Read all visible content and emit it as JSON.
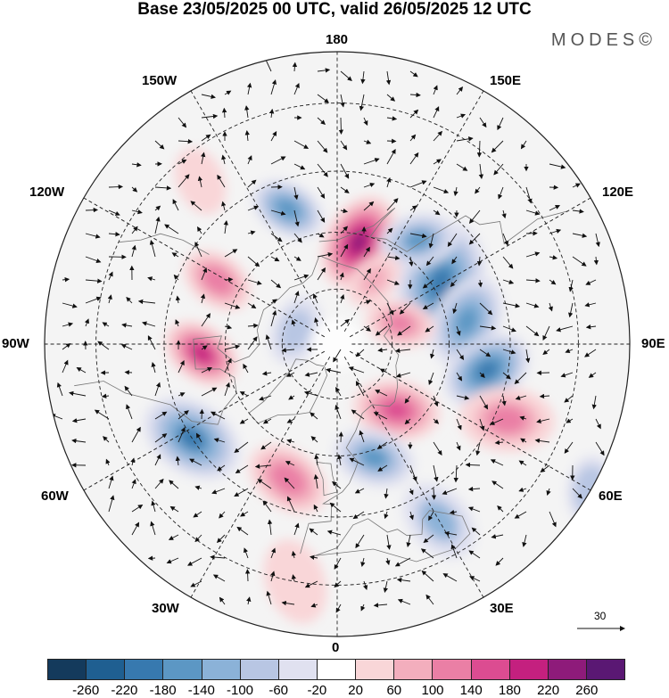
{
  "title": "Base 23/05/2025 00 UTC, valid 26/05/2025 12 UTC",
  "logo": "MODES©",
  "longitude_labels": {
    "top": "180",
    "bottom": "0",
    "left": "90W",
    "right": "90E",
    "l150w": "150W",
    "l150e": "150E",
    "l120w": "120W",
    "l120e": "120E",
    "l60w": "60W",
    "l60e": "60E",
    "l30w": "30W",
    "l30e": "30E"
  },
  "wind_reference": {
    "value": "30"
  },
  "colorbar": {
    "ticks": [
      "-260",
      "-220",
      "-180",
      "-140",
      "-100",
      "-60",
      "-20",
      "20",
      "60",
      "100",
      "140",
      "180",
      "220",
      "260"
    ],
    "colors": [
      "#143a5c",
      "#1f5f91",
      "#3779af",
      "#5c97c4",
      "#8bb2d8",
      "#b8c6e3",
      "#e0e1f0",
      "#ffffff",
      "#f9d6d8",
      "#f3aebd",
      "#ea7fa5",
      "#dc4c91",
      "#c4207f",
      "#8e1b7a",
      "#5a1873"
    ]
  },
  "anomalies": [
    {
      "lon": 168,
      "lat": 62,
      "v": 230,
      "r": 48
    },
    {
      "lon": 120,
      "lat": 58,
      "v": -190,
      "r": 62
    },
    {
      "lon": 100,
      "lat": 55,
      "v": -160,
      "r": 48
    },
    {
      "lon": 142,
      "lat": 55,
      "v": -140,
      "r": 40
    },
    {
      "lon": 80,
      "lat": 50,
      "v": -200,
      "r": 46
    },
    {
      "lon": 108,
      "lat": 72,
      "v": 120,
      "r": 36
    },
    {
      "lon": 66,
      "lat": 42,
      "v": 110,
      "r": 50
    },
    {
      "lon": 42,
      "lat": 66,
      "v": 160,
      "r": 44
    },
    {
      "lon": 18,
      "lat": 58,
      "v": -140,
      "r": 42
    },
    {
      "lon": 30,
      "lat": 38,
      "v": -100,
      "r": 46
    },
    {
      "lon": -20,
      "lat": 52,
      "v": 140,
      "r": 44
    },
    {
      "lon": -57,
      "lat": 45,
      "v": -180,
      "r": 52
    },
    {
      "lon": -86,
      "lat": 54,
      "v": 190,
      "r": 40
    },
    {
      "lon": -118,
      "lat": 54,
      "v": 140,
      "r": 38
    },
    {
      "lon": -160,
      "lat": 52,
      "v": -170,
      "r": 38
    },
    {
      "lon": -140,
      "lat": 36,
      "v": 60,
      "r": 40
    },
    {
      "lon": -108,
      "lat": 78,
      "v": -70,
      "r": 40
    },
    {
      "lon": 150,
      "lat": 70,
      "v": 80,
      "r": 34
    },
    {
      "lon": 60,
      "lat": 20,
      "v": -60,
      "r": 40
    },
    {
      "lon": -10,
      "lat": 30,
      "v": 60,
      "r": 50
    }
  ]
}
